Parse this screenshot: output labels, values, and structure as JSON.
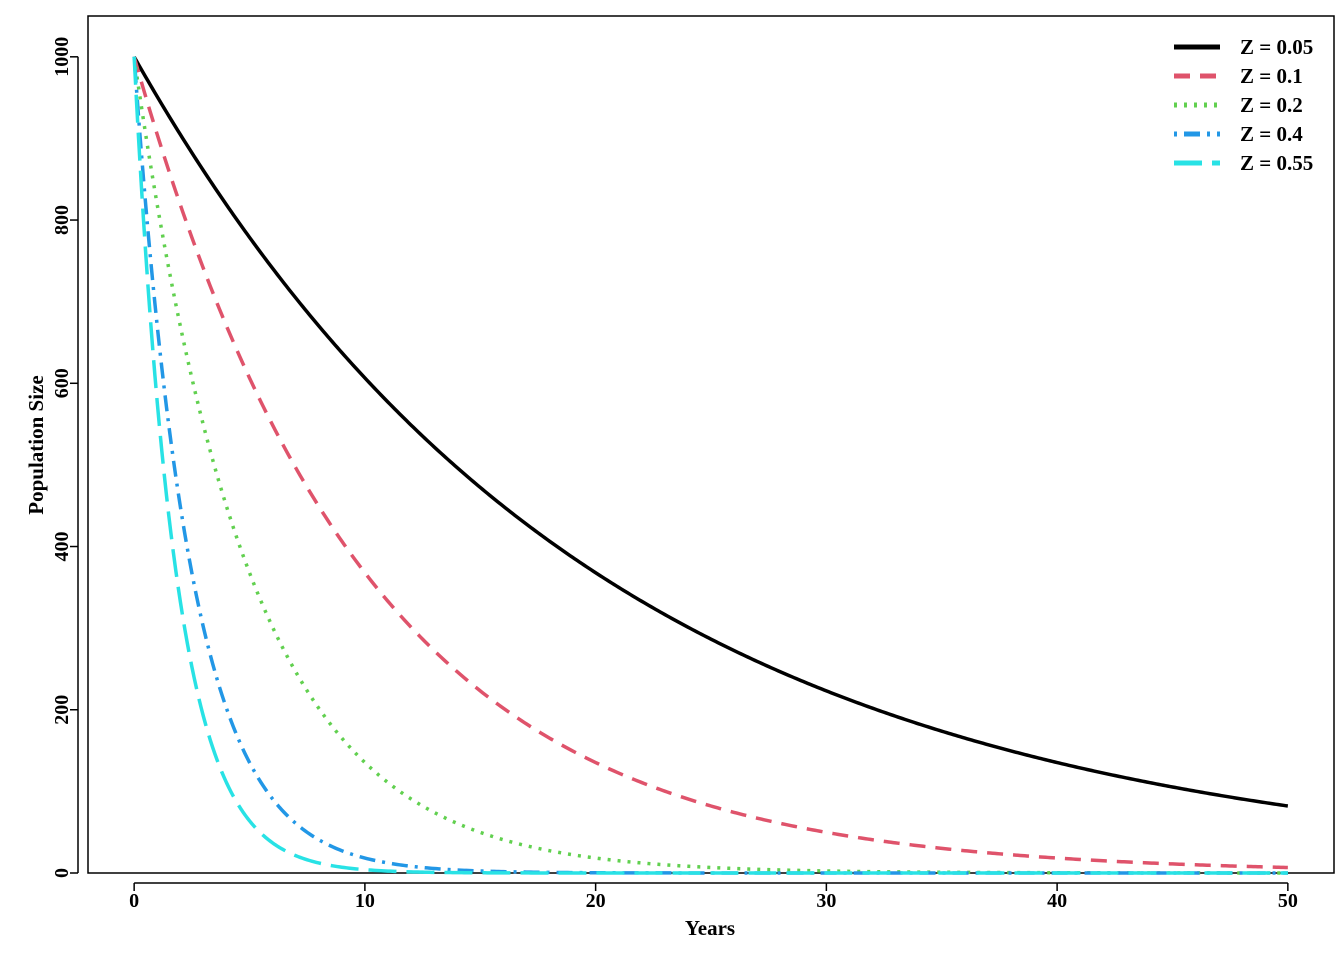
{
  "chart_data": {
    "type": "line",
    "title": "",
    "xlabel": "Years",
    "ylabel": "Population Size",
    "xlim": [
      -2,
      52
    ],
    "ylim": [
      0,
      1050
    ],
    "xticks": [
      0,
      10,
      20,
      30,
      40,
      50
    ],
    "yticks": [
      0,
      200,
      400,
      600,
      800,
      1000
    ],
    "grid": false,
    "legend_position": "top-right",
    "x_start": 0,
    "x_end": 50,
    "initial_population": 1000,
    "series": [
      {
        "name": "Z = 0.05",
        "z": 0.05,
        "color": "#000000",
        "dash": "solid"
      },
      {
        "name": "Z = 0.1",
        "z": 0.1,
        "color": "#DF536B",
        "dash": "dashed"
      },
      {
        "name": "Z = 0.2",
        "z": 0.2,
        "color": "#61D04F",
        "dash": "dotted"
      },
      {
        "name": "Z = 0.4",
        "z": 0.4,
        "color": "#2297E6",
        "dash": "dotdash"
      },
      {
        "name": "Z = 0.55",
        "z": 0.55,
        "color": "#28E2E5",
        "dash": "longdash"
      }
    ]
  }
}
